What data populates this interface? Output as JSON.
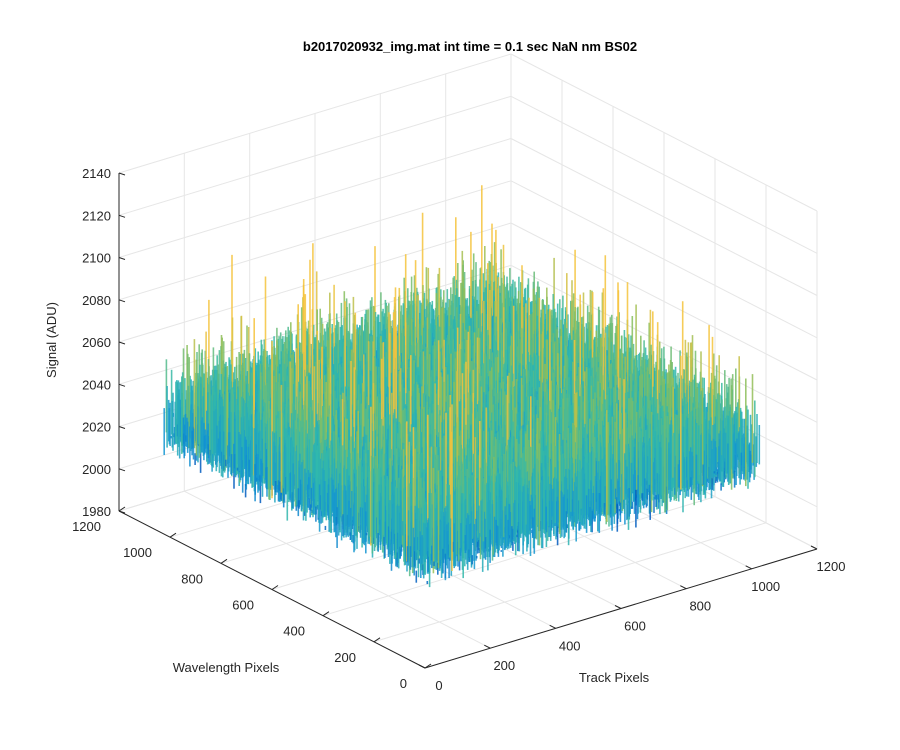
{
  "chart_data": {
    "type": "surface",
    "title": "b2017020932_img.mat int time = 0.1 sec  NaN nm BS02",
    "xlabel": "Track Pixels",
    "ylabel": "Wavelength Pixels",
    "zlabel": "Signal (ADU)",
    "xlim": [
      0,
      1200
    ],
    "ylim": [
      0,
      1200
    ],
    "zlim": [
      1980,
      2140
    ],
    "xticks": [
      "0",
      "200",
      "400",
      "600",
      "800",
      "1000",
      "1200"
    ],
    "yticks": [
      "0",
      "200",
      "400",
      "600",
      "800",
      "1000",
      "1200"
    ],
    "zticks": [
      "1980",
      "2000",
      "2020",
      "2040",
      "2060",
      "2080",
      "2100",
      "2120",
      "2140"
    ],
    "data_extent": {
      "x": [
        1,
        1024
      ],
      "y": [
        1,
        1024
      ]
    },
    "signal_mean": 2045,
    "signal_range": [
      1985,
      2135
    ],
    "grid": true,
    "colormap": "parula",
    "colors": {
      "low": "#0072bd",
      "mid": "#1fa9c9",
      "high": "#f2c23c"
    }
  }
}
